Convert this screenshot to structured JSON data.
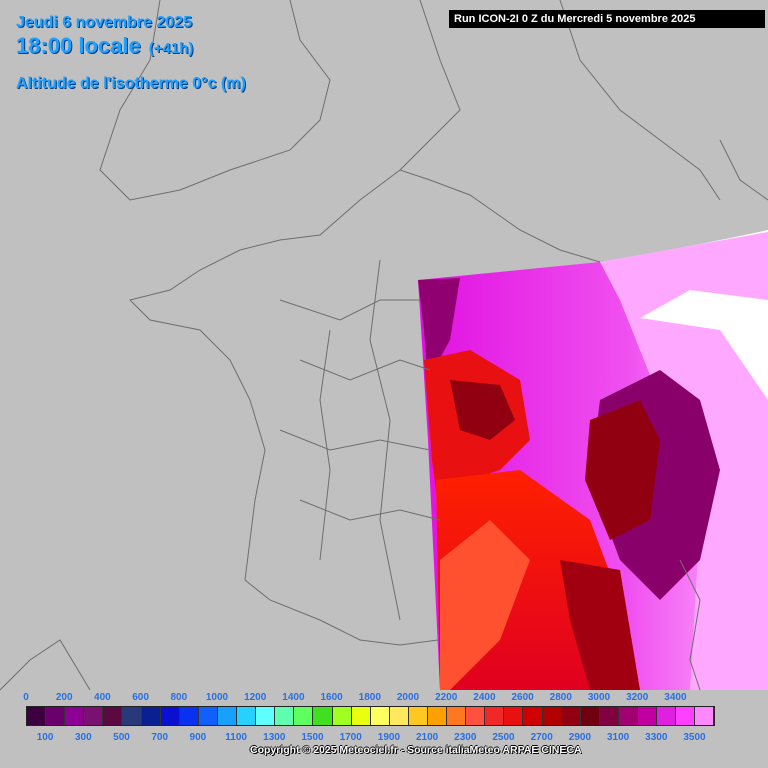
{
  "header": {
    "date": "Jeudi 6 novembre 2025",
    "time": "18:00 locale",
    "lead": "(+41h)",
    "parameter": "Altitude de l'isotherme 0°c (m)"
  },
  "run_label": "Run ICON-2I 0 Z du Mercredi 5 novembre 2025",
  "legend": {
    "top_labels": [
      "0",
      "200",
      "400",
      "600",
      "800",
      "1000",
      "1200",
      "1400",
      "1600",
      "1800",
      "2000",
      "2200",
      "2400",
      "2600",
      "2800",
      "3000",
      "3200",
      "3400"
    ],
    "bottom_labels": [
      "100",
      "300",
      "500",
      "700",
      "900",
      "1100",
      "1300",
      "1500",
      "1700",
      "1900",
      "2100",
      "2300",
      "2500",
      "2700",
      "2900",
      "3100",
      "3300",
      "3500"
    ],
    "colors": [
      "#3c0040",
      "#6a006a",
      "#8e0094",
      "#7a1070",
      "#5a0a40",
      "#283878",
      "#0a2090",
      "#0a10d0",
      "#0a30f0",
      "#1060ff",
      "#18a0ff",
      "#28d0ff",
      "#60ffff",
      "#60ffb0",
      "#60ff60",
      "#40e020",
      "#a0ff20",
      "#e8ff10",
      "#ffff60",
      "#ffe860",
      "#ffc820",
      "#ffa000",
      "#ff7820",
      "#ff5040",
      "#f02828",
      "#e81010",
      "#d00000",
      "#b00000",
      "#900010",
      "#700010",
      "#800040",
      "#a00070",
      "#c000a0",
      "#e020e0",
      "#ff40ff",
      "#ff88ff"
    ]
  },
  "copyright": "Copyright © 2025 Meteociel.fr - Source italiaMeteo ARPAE CINECA",
  "map_colors": {
    "background": "#c0c0c0",
    "outside_domain": "#ffffff",
    "border_lines": "#6e6e6e"
  }
}
